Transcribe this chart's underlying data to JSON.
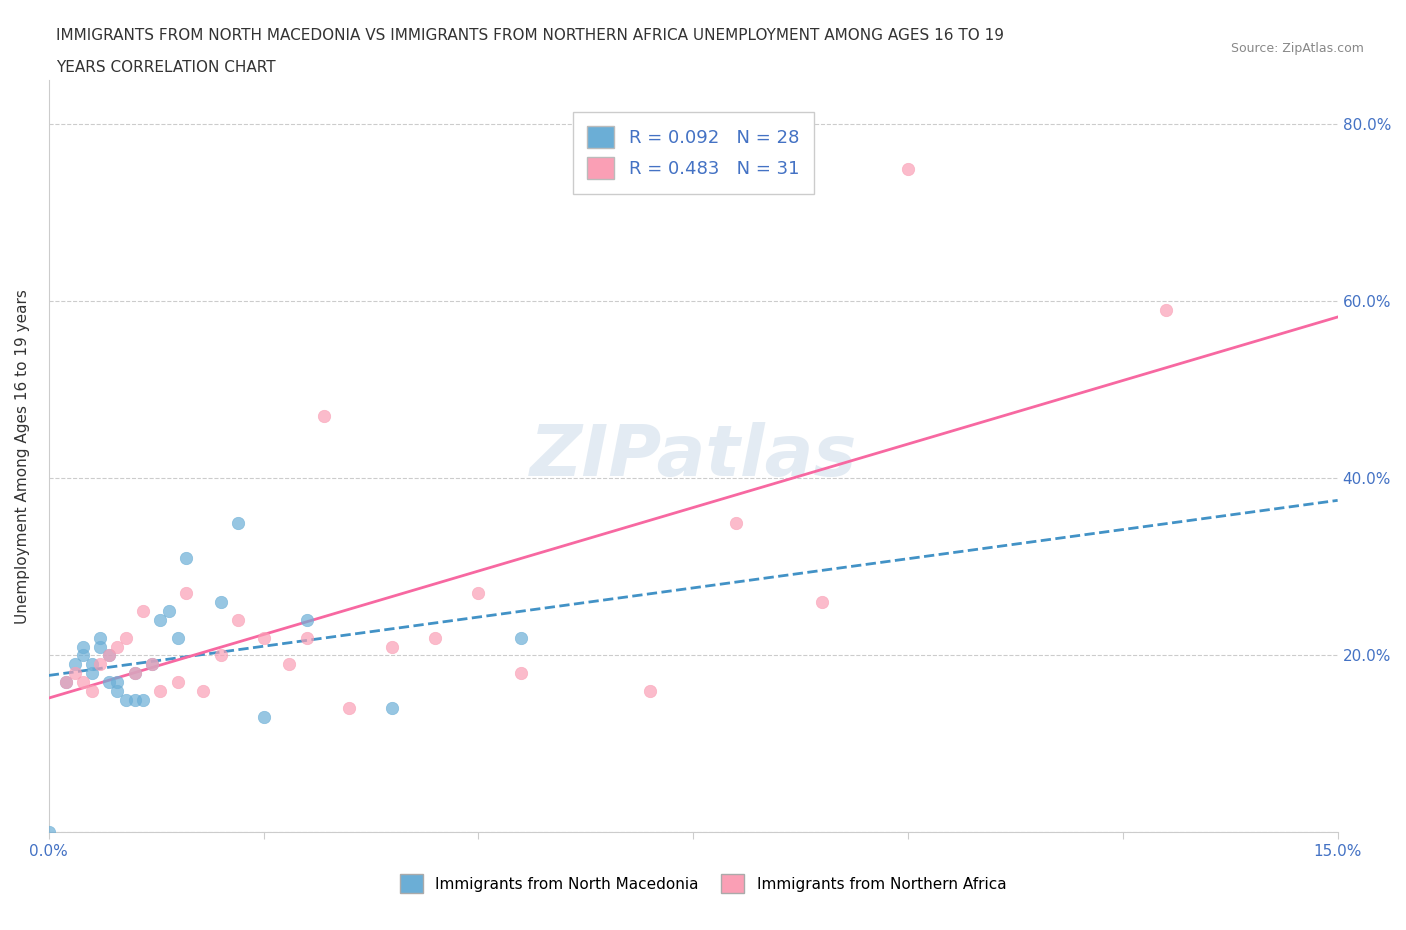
{
  "title_line1": "IMMIGRANTS FROM NORTH MACEDONIA VS IMMIGRANTS FROM NORTHERN AFRICA UNEMPLOYMENT AMONG AGES 16 TO 19",
  "title_line2": "YEARS CORRELATION CHART",
  "source": "Source: ZipAtlas.com",
  "xlabel": "",
  "ylabel": "Unemployment Among Ages 16 to 19 years",
  "r_blue": 0.092,
  "n_blue": 28,
  "r_pink": 0.483,
  "n_pink": 31,
  "blue_color": "#6baed6",
  "pink_color": "#fa9fb5",
  "blue_line_color": "#4292c6",
  "pink_line_color": "#f768a1",
  "watermark": "ZIPatlas",
  "blue_scatter_x": [
    0.0,
    0.002,
    0.003,
    0.004,
    0.004,
    0.005,
    0.005,
    0.006,
    0.006,
    0.007,
    0.007,
    0.008,
    0.008,
    0.009,
    0.01,
    0.01,
    0.011,
    0.012,
    0.013,
    0.014,
    0.015,
    0.016,
    0.02,
    0.022,
    0.025,
    0.03,
    0.04,
    0.055
  ],
  "blue_scatter_y": [
    0.0,
    0.17,
    0.19,
    0.2,
    0.21,
    0.18,
    0.19,
    0.22,
    0.21,
    0.2,
    0.17,
    0.16,
    0.17,
    0.15,
    0.18,
    0.15,
    0.15,
    0.19,
    0.24,
    0.25,
    0.22,
    0.31,
    0.26,
    0.35,
    0.13,
    0.24,
    0.14,
    0.22
  ],
  "pink_scatter_x": [
    0.002,
    0.003,
    0.004,
    0.005,
    0.006,
    0.007,
    0.008,
    0.009,
    0.01,
    0.011,
    0.012,
    0.013,
    0.015,
    0.016,
    0.018,
    0.02,
    0.022,
    0.025,
    0.028,
    0.03,
    0.032,
    0.035,
    0.04,
    0.045,
    0.05,
    0.055,
    0.07,
    0.08,
    0.09,
    0.1,
    0.13
  ],
  "pink_scatter_y": [
    0.17,
    0.18,
    0.17,
    0.16,
    0.19,
    0.2,
    0.21,
    0.22,
    0.18,
    0.25,
    0.19,
    0.16,
    0.17,
    0.27,
    0.16,
    0.2,
    0.24,
    0.22,
    0.19,
    0.22,
    0.47,
    0.14,
    0.21,
    0.22,
    0.27,
    0.18,
    0.16,
    0.35,
    0.26,
    0.75,
    0.59
  ],
  "xmin": 0.0,
  "xmax": 0.15,
  "ymin": 0.0,
  "ymax": 0.85,
  "xticks": [
    0.0,
    0.025,
    0.05,
    0.075,
    0.1,
    0.125,
    0.15
  ],
  "xticklabels": [
    "0.0%",
    "",
    "",
    "",
    "",
    "",
    "15.0%"
  ],
  "ytick_positions": [
    0.0,
    0.2,
    0.4,
    0.6,
    0.8
  ],
  "yticklabels_right": [
    "",
    "20.0%",
    "40.0%",
    "60.0%",
    "80.0%"
  ]
}
